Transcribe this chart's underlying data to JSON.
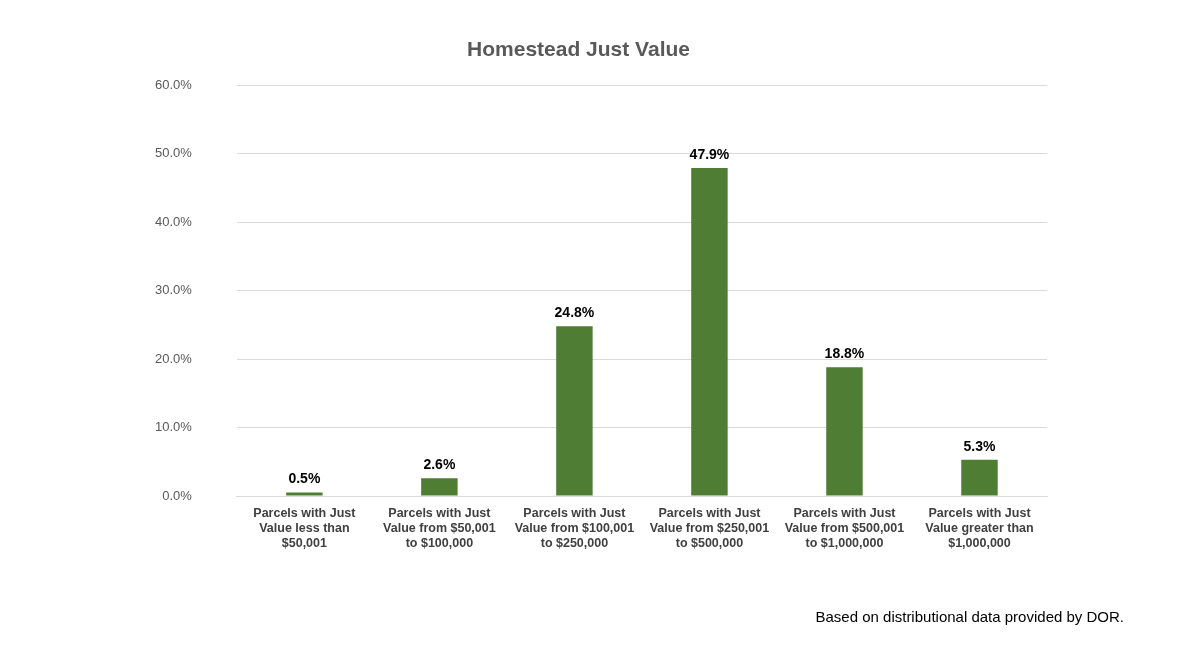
{
  "chart_data": {
    "type": "bar",
    "title": "Homestead Just Value",
    "categories": [
      "Parcels with Just Value less than $50,001",
      "Parcels with Just Value from $50,001 to $100,000",
      "Parcels with Just Value from $100,001 to $250,000",
      "Parcels with Just Value from $250,001 to $500,000",
      "Parcels with Just Value from $500,001 to $1,000,000",
      "Parcels with Just Value greater than $1,000,000"
    ],
    "values": [
      0.5,
      2.6,
      24.8,
      47.9,
      18.8,
      5.3
    ],
    "value_labels": [
      "0.5%",
      "2.6%",
      "24.8%",
      "47.9%",
      "18.8%",
      "5.3%"
    ],
    "color": "#4e7d33",
    "ylim": [
      0,
      60
    ],
    "yticks": [
      {
        "value": 0,
        "label": "0.0%"
      },
      {
        "value": 10,
        "label": "10.0%"
      },
      {
        "value": 20,
        "label": "20.0%"
      },
      {
        "value": 30,
        "label": "30.0%"
      },
      {
        "value": 40,
        "label": "40.0%"
      },
      {
        "value": 50,
        "label": "50.0%"
      },
      {
        "value": 60,
        "label": "60.0%"
      }
    ],
    "grid": "y",
    "annotations": [
      "Based on distributional data provided by DOR."
    ]
  }
}
